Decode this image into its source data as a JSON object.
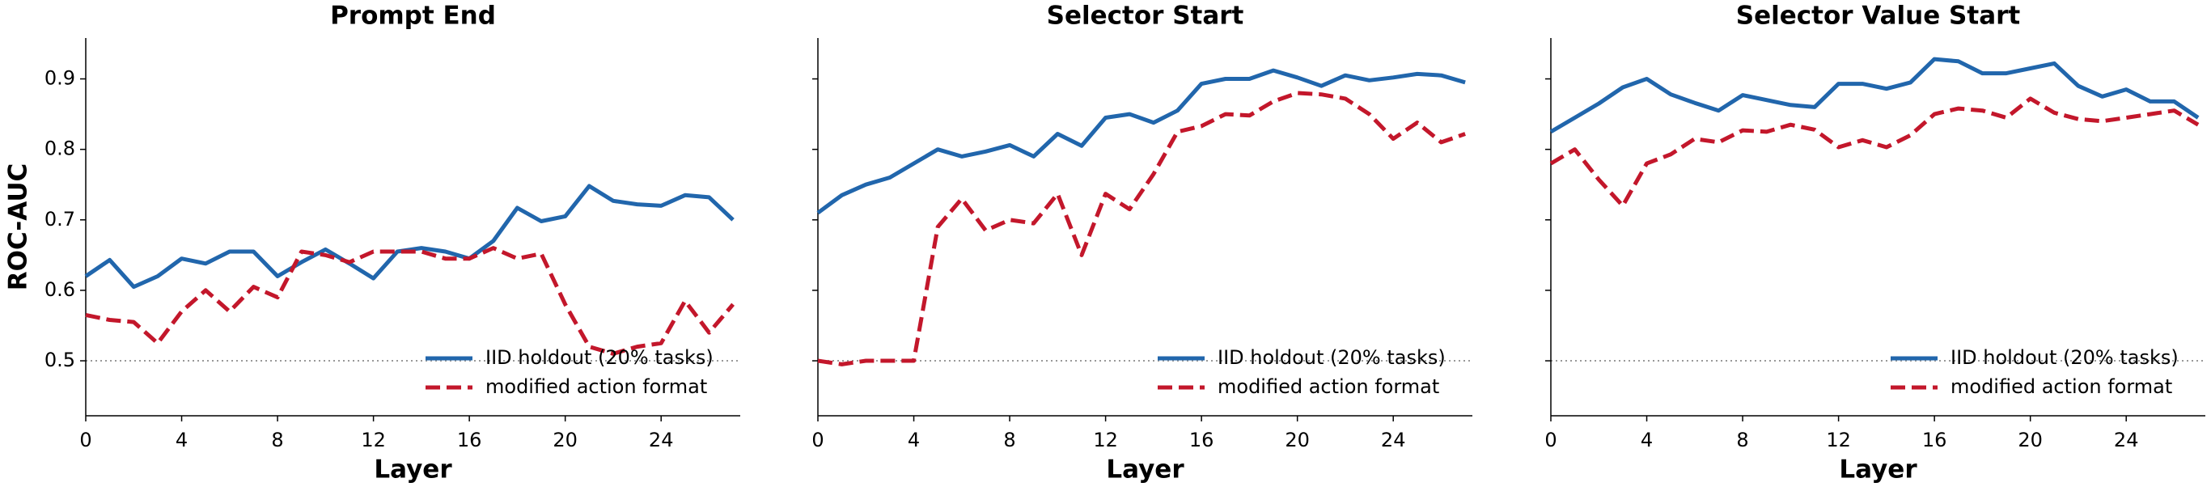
{
  "chart_data": [
    {
      "type": "line",
      "title": "Prompt End",
      "xlabel": "Layer",
      "ylabel": "ROC-AUC",
      "x": [
        0,
        1,
        2,
        3,
        4,
        5,
        6,
        7,
        8,
        9,
        10,
        11,
        12,
        13,
        14,
        15,
        16,
        17,
        18,
        19,
        20,
        21,
        22,
        23,
        24,
        25,
        26,
        27
      ],
      "series": [
        {
          "name": "IID holdout (20% tasks)",
          "color": "#2166ac",
          "style": "solid",
          "values": [
            0.62,
            0.643,
            0.605,
            0.62,
            0.645,
            0.638,
            0.655,
            0.655,
            0.62,
            0.64,
            0.658,
            0.638,
            0.617,
            0.655,
            0.66,
            0.655,
            0.645,
            0.67,
            0.717,
            0.698,
            0.705,
            0.748,
            0.727,
            0.722,
            0.72,
            0.735,
            0.732,
            0.7
          ]
        },
        {
          "name": "modified action format",
          "color": "#c3172b",
          "style": "dashed",
          "values": [
            0.565,
            0.558,
            0.555,
            0.525,
            0.57,
            0.6,
            0.57,
            0.605,
            0.59,
            0.655,
            0.65,
            0.64,
            0.655,
            0.655,
            0.655,
            0.645,
            0.645,
            0.66,
            0.645,
            0.652,
            0.58,
            0.52,
            0.51,
            0.52,
            0.525,
            0.585,
            0.54,
            0.58
          ]
        }
      ],
      "xlim": [
        0,
        27.3
      ],
      "xticks": [
        0,
        4,
        8,
        12,
        16,
        20,
        24
      ],
      "ylim": [
        0.422,
        0.958
      ],
      "yticks": [
        0.5,
        0.6,
        0.7,
        0.8,
        0.9
      ],
      "show_ytick_labels": true,
      "hline": 0.5,
      "legend": "lower right"
    },
    {
      "type": "line",
      "title": "Selector Start",
      "xlabel": "Layer",
      "x": [
        0,
        1,
        2,
        3,
        4,
        5,
        6,
        7,
        8,
        9,
        10,
        11,
        12,
        13,
        14,
        15,
        16,
        17,
        18,
        19,
        20,
        21,
        22,
        23,
        24,
        25,
        26,
        27
      ],
      "series": [
        {
          "name": "IID holdout (20% tasks)",
          "color": "#2166ac",
          "style": "solid",
          "values": [
            0.71,
            0.735,
            0.75,
            0.76,
            0.78,
            0.8,
            0.79,
            0.797,
            0.806,
            0.79,
            0.822,
            0.805,
            0.845,
            0.85,
            0.838,
            0.855,
            0.893,
            0.9,
            0.9,
            0.912,
            0.902,
            0.89,
            0.905,
            0.898,
            0.902,
            0.907,
            0.905,
            0.895
          ]
        },
        {
          "name": "modified action format",
          "color": "#c3172b",
          "style": "dashed",
          "values": [
            0.5,
            0.495,
            0.5,
            0.5,
            0.5,
            0.69,
            0.73,
            0.685,
            0.7,
            0.695,
            0.737,
            0.65,
            0.737,
            0.715,
            0.765,
            0.825,
            0.833,
            0.85,
            0.848,
            0.868,
            0.88,
            0.878,
            0.872,
            0.85,
            0.815,
            0.838,
            0.81,
            0.822
          ]
        }
      ],
      "xlim": [
        0,
        27.3
      ],
      "xticks": [
        0,
        4,
        8,
        12,
        16,
        20,
        24
      ],
      "ylim": [
        0.422,
        0.958
      ],
      "yticks": [
        0.5,
        0.6,
        0.7,
        0.8,
        0.9
      ],
      "show_ytick_labels": false,
      "hline": 0.5,
      "legend": "lower right"
    },
    {
      "type": "line",
      "title": "Selector Value Start",
      "xlabel": "Layer",
      "x": [
        0,
        1,
        2,
        3,
        4,
        5,
        6,
        7,
        8,
        9,
        10,
        11,
        12,
        13,
        14,
        15,
        16,
        17,
        18,
        19,
        20,
        21,
        22,
        23,
        24,
        25,
        26,
        27
      ],
      "series": [
        {
          "name": "IID holdout (20% tasks)",
          "color": "#2166ac",
          "style": "solid",
          "values": [
            0.825,
            0.845,
            0.865,
            0.888,
            0.9,
            0.878,
            0.866,
            0.855,
            0.877,
            0.87,
            0.863,
            0.86,
            0.893,
            0.893,
            0.886,
            0.895,
            0.928,
            0.925,
            0.908,
            0.908,
            0.915,
            0.922,
            0.89,
            0.875,
            0.885,
            0.868,
            0.868,
            0.845
          ]
        },
        {
          "name": "modified action format",
          "color": "#c3172b",
          "style": "dashed",
          "values": [
            0.78,
            0.8,
            0.757,
            0.72,
            0.78,
            0.793,
            0.815,
            0.81,
            0.827,
            0.825,
            0.835,
            0.828,
            0.803,
            0.813,
            0.803,
            0.82,
            0.85,
            0.858,
            0.855,
            0.845,
            0.872,
            0.852,
            0.843,
            0.84,
            0.845,
            0.85,
            0.855,
            0.835
          ]
        }
      ],
      "xlim": [
        0,
        27.3
      ],
      "xticks": [
        0,
        4,
        8,
        12,
        16,
        20,
        24
      ],
      "ylim": [
        0.422,
        0.958
      ],
      "yticks": [
        0.5,
        0.6,
        0.7,
        0.8,
        0.9
      ],
      "show_ytick_labels": false,
      "hline": 0.5,
      "legend": "lower right"
    }
  ]
}
